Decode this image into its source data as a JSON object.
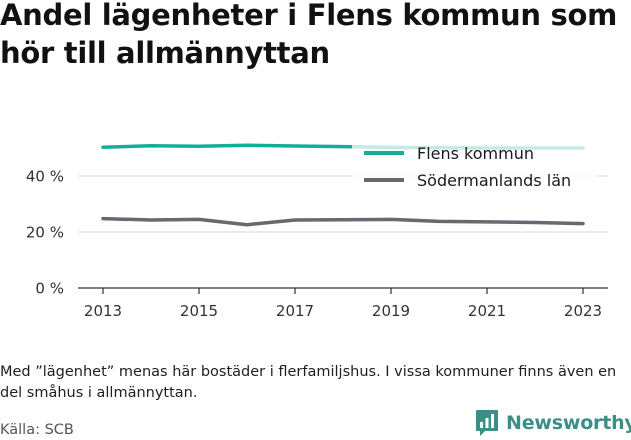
{
  "title": "Andel lägenheter i Flens kommun som hör till allmännyttan",
  "note": "Med ”lägenhet” menas här bostäder i flerfamiljshus. I vissa kommuner finns även en del småhus i allmännyttan.",
  "source": "Källa: SCB",
  "brand": "Newsworthy",
  "colors": {
    "flen": "#14ad99",
    "sodermanland": "#686870",
    "legend_bg": "#ffffff",
    "grid": "#d8d8d8",
    "axis": "#333333",
    "brand": "#3c8f86"
  },
  "chart_data": {
    "type": "line",
    "x": [
      2013,
      2014,
      2015,
      2016,
      2017,
      2018,
      2019,
      2020,
      2021,
      2022,
      2023
    ],
    "xticks": [
      2013,
      2015,
      2017,
      2019,
      2021,
      2023
    ],
    "xtick_labels": [
      "2013",
      "2015",
      "2017",
      "2019",
      "2021",
      "2023"
    ],
    "ylim": [
      0,
      60
    ],
    "yticks": [
      0,
      20,
      40
    ],
    "ytick_labels": [
      "0 %",
      "20 %",
      "40 %"
    ],
    "grid": true,
    "legend_position": "top-right",
    "series": [
      {
        "name": "Flens kommun",
        "color_key": "flen",
        "values": [
          50.3,
          50.8,
          50.6,
          51.0,
          50.7,
          50.5,
          50.2,
          50.1,
          50.0,
          50.0,
          50.0
        ]
      },
      {
        "name": "Södermanlands län",
        "color_key": "sodermanland",
        "values": [
          24.8,
          24.3,
          24.5,
          22.6,
          24.3,
          24.4,
          24.5,
          23.8,
          23.6,
          23.4,
          23.0
        ]
      }
    ]
  }
}
